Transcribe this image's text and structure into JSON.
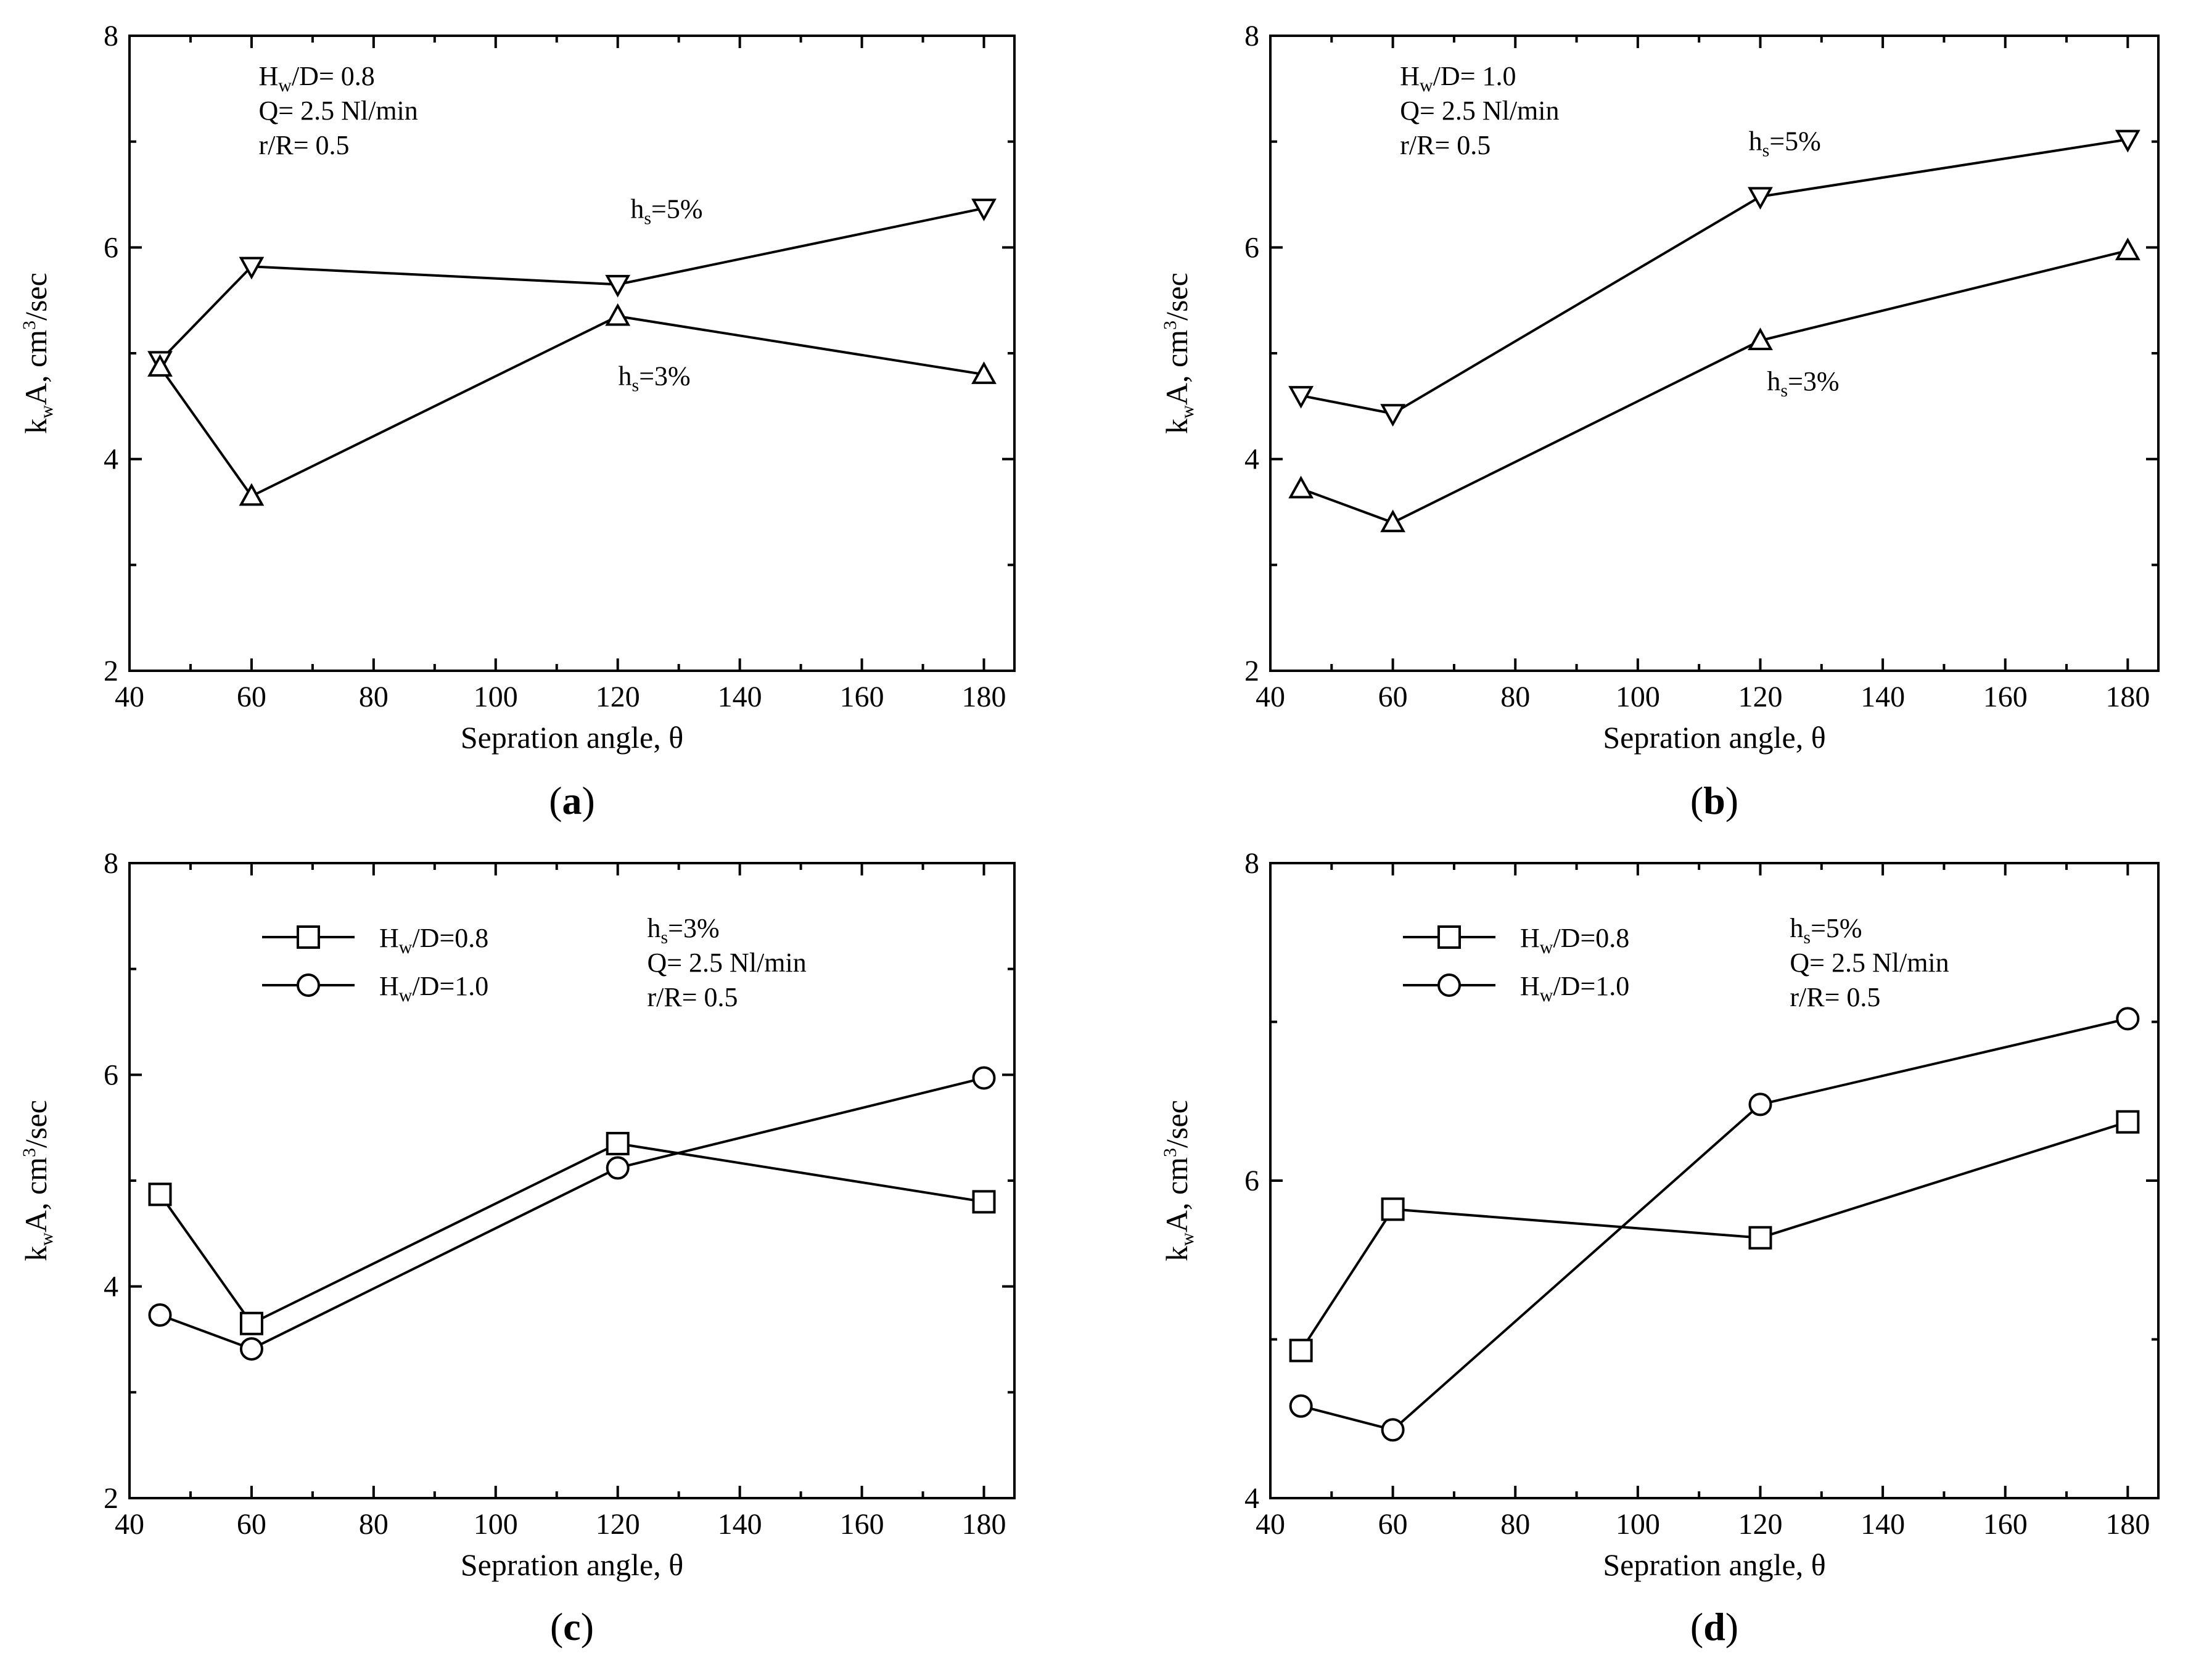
{
  "figure": {
    "panels": [
      "a",
      "b",
      "c",
      "d"
    ]
  },
  "chart_data": [
    {
      "id": "a",
      "type": "line",
      "panel_label": "a",
      "xlabel": "Sepration angle, θ",
      "ylabel": {
        "k": "k",
        "k_sub": "w",
        "rest": "A, cm",
        "sup": "3",
        "tail": "/sec"
      },
      "xlim": [
        40,
        185
      ],
      "ylim": [
        2,
        8
      ],
      "xticks": [
        40,
        60,
        80,
        100,
        120,
        140,
        160,
        180
      ],
      "yticks": [
        2,
        4,
        6,
        8
      ],
      "annotation": {
        "lines": [
          {
            "main": "H",
            "sub": "w",
            "rest": "/D= 0.8"
          },
          {
            "main": "Q= 2.5 Nl/min",
            "sub": "",
            "rest": ""
          },
          {
            "main": "r/R= 0.5",
            "sub": "",
            "rest": ""
          }
        ]
      },
      "series": [
        {
          "name": "hs=5%",
          "label": {
            "main": "h",
            "sub": "s",
            "rest": "=5%"
          },
          "marker": "triangle-down",
          "x": [
            45,
            60,
            120,
            180
          ],
          "y": [
            4.93,
            5.82,
            5.65,
            6.37
          ],
          "label_at": [
            128,
            6.28
          ]
        },
        {
          "name": "hs=3%",
          "label": {
            "main": "h",
            "sub": "s",
            "rest": "=3%"
          },
          "marker": "triangle-up",
          "x": [
            45,
            60,
            120,
            180
          ],
          "y": [
            4.87,
            3.65,
            5.35,
            4.8
          ],
          "label_at": [
            126,
            4.7
          ]
        }
      ],
      "legend": null
    },
    {
      "id": "b",
      "type": "line",
      "panel_label": "b",
      "xlabel": "Sepration angle, θ",
      "ylabel": {
        "k": "k",
        "k_sub": "w",
        "rest": "A, cm",
        "sup": "3",
        "tail": "/sec"
      },
      "xlim": [
        40,
        185
      ],
      "ylim": [
        2,
        8
      ],
      "xticks": [
        40,
        60,
        80,
        100,
        120,
        140,
        160,
        180
      ],
      "yticks": [
        2,
        4,
        6,
        8
      ],
      "annotation": {
        "lines": [
          {
            "main": "H",
            "sub": "w",
            "rest": "/D= 1.0"
          },
          {
            "main": "Q= 2.5 Nl/min",
            "sub": "",
            "rest": ""
          },
          {
            "main": "r/R= 0.5",
            "sub": "",
            "rest": ""
          }
        ]
      },
      "series": [
        {
          "name": "hs=5%",
          "label": {
            "main": "h",
            "sub": "s",
            "rest": "=5%"
          },
          "marker": "triangle-down",
          "x": [
            45,
            60,
            120,
            180
          ],
          "y": [
            4.6,
            4.43,
            6.48,
            7.02
          ],
          "label_at": [
            124,
            6.92
          ]
        },
        {
          "name": "hs=3%",
          "label": {
            "main": "h",
            "sub": "s",
            "rest": "=3%"
          },
          "marker": "triangle-up",
          "x": [
            45,
            60,
            120,
            180
          ],
          "y": [
            3.72,
            3.4,
            5.12,
            5.97
          ],
          "label_at": [
            127,
            4.65
          ]
        }
      ],
      "legend": null
    },
    {
      "id": "c",
      "type": "line",
      "panel_label": "c",
      "xlabel": "Sepration angle, θ",
      "ylabel": {
        "k": "k",
        "k_sub": "w",
        "rest": "A, cm",
        "sup": "3",
        "tail": "/sec"
      },
      "xlim": [
        40,
        185
      ],
      "ylim": [
        2,
        8
      ],
      "xticks": [
        40,
        60,
        80,
        100,
        120,
        140,
        160,
        180
      ],
      "yticks": [
        2,
        4,
        6,
        8
      ],
      "annotation": {
        "lines": [
          {
            "main": "h",
            "sub": "s",
            "rest": "=3%"
          },
          {
            "main": "Q= 2.5 Nl/min",
            "sub": "",
            "rest": ""
          },
          {
            "main": "r/R= 0.5",
            "sub": "",
            "rest": ""
          }
        ]
      },
      "series": [
        {
          "name": "Hw/D=0.8",
          "label": {
            "main": "H",
            "sub": "w",
            "rest": "/D=0.8"
          },
          "marker": "square",
          "x": [
            45,
            60,
            120,
            180
          ],
          "y": [
            4.87,
            3.65,
            5.35,
            4.8
          ]
        },
        {
          "name": "Hw/D=1.0",
          "label": {
            "main": "H",
            "sub": "w",
            "rest": "/D=1.0"
          },
          "marker": "circle",
          "x": [
            45,
            60,
            120,
            180
          ],
          "y": [
            3.73,
            3.41,
            5.12,
            5.97
          ]
        }
      ],
      "legend": "top-left"
    },
    {
      "id": "d",
      "type": "line",
      "panel_label": "d",
      "xlabel": "Sepration angle, θ",
      "ylabel": {
        "k": "k",
        "k_sub": "w",
        "rest": "A, cm",
        "sup": "3",
        "tail": "/sec"
      },
      "xlim": [
        40,
        185
      ],
      "ylim": [
        4,
        8
      ],
      "xticks": [
        40,
        60,
        80,
        100,
        120,
        140,
        160,
        180
      ],
      "yticks": [
        4,
        6,
        8
      ],
      "annotation": {
        "lines": [
          {
            "main": "h",
            "sub": "s",
            "rest": "=5%"
          },
          {
            "main": "Q= 2.5 Nl/min",
            "sub": "",
            "rest": ""
          },
          {
            "main": "r/R= 0.5",
            "sub": "",
            "rest": ""
          }
        ]
      },
      "series": [
        {
          "name": "Hw/D=0.8",
          "label": {
            "main": "H",
            "sub": "w",
            "rest": "/D=0.8"
          },
          "marker": "square",
          "x": [
            45,
            60,
            120,
            180
          ],
          "y": [
            4.93,
            5.82,
            5.64,
            6.37
          ]
        },
        {
          "name": "Hw/D=1.0",
          "label": {
            "main": "H",
            "sub": "w",
            "rest": "/D=1.0"
          },
          "marker": "circle",
          "x": [
            45,
            60,
            120,
            180
          ],
          "y": [
            4.58,
            4.43,
            6.48,
            7.02
          ]
        }
      ],
      "legend": "top-left"
    }
  ]
}
